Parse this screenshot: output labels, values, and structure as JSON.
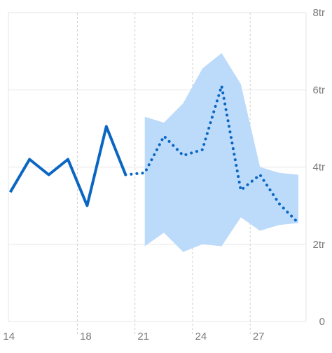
{
  "chart_data": {
    "type": "line",
    "x_tick_labels": [
      "14",
      "18",
      "21",
      "24",
      "27"
    ],
    "x_tick_values": [
      14,
      18,
      21,
      24,
      27
    ],
    "y_tick_labels": [
      "0",
      "2tr",
      "4tr",
      "6tr",
      "8tr"
    ],
    "y_tick_values": [
      0,
      2,
      4,
      6,
      8
    ],
    "xlim": [
      13.9,
      29.4
    ],
    "ylim": [
      0,
      8
    ],
    "grid": {
      "horizontal": true,
      "vertical": "dashed"
    },
    "colors": {
      "line": "#0a66c2",
      "band": "#bcdafa",
      "grid": "#e6e6e6",
      "tick_text": "#7a7a7a"
    },
    "series": [
      {
        "style": "solid",
        "x": [
          14,
          15,
          16,
          17,
          18,
          19,
          20
        ],
        "y": [
          3.35,
          4.2,
          3.8,
          4.2,
          3.0,
          5.05,
          3.8
        ]
      },
      {
        "style": "dotted",
        "x": [
          20,
          21,
          22,
          23,
          24,
          25,
          26,
          27,
          28,
          29
        ],
        "y": [
          3.8,
          3.85,
          4.8,
          4.3,
          4.45,
          6.1,
          3.4,
          3.8,
          3.05,
          2.55
        ]
      }
    ],
    "band": {
      "x": [
        21,
        22,
        23,
        24,
        25,
        26,
        27,
        28,
        29
      ],
      "upper": [
        5.3,
        5.15,
        5.65,
        6.55,
        6.95,
        6.15,
        4.0,
        3.85,
        3.8
      ],
      "lower": [
        1.95,
        2.3,
        1.8,
        2.0,
        1.95,
        2.7,
        2.35,
        2.5,
        2.55
      ]
    }
  }
}
